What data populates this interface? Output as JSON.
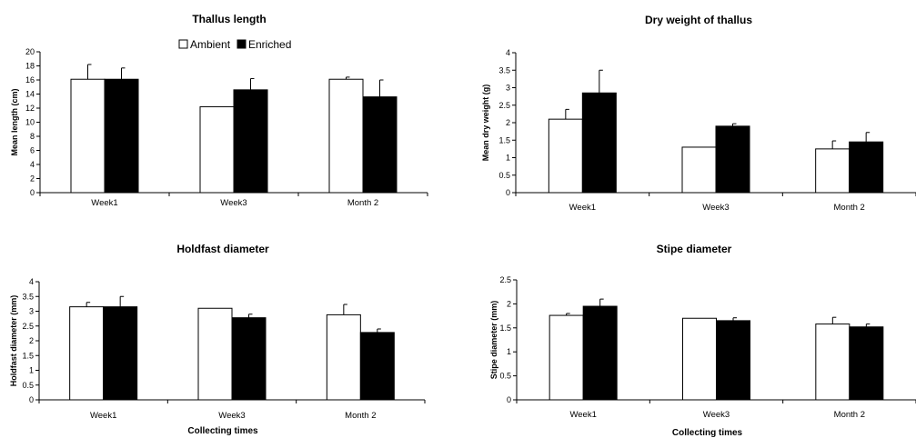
{
  "chart_data": [
    {
      "type": "bar",
      "title": "Thallus length",
      "xlabel": "",
      "ylabel": "Mean length (cm)",
      "categories": [
        "Week1",
        "Week3",
        "Month 2"
      ],
      "yticks": [
        "0",
        "2",
        "4",
        "6",
        "8",
        "10",
        "12",
        "14",
        "16",
        "18",
        "20"
      ],
      "ylim": [
        0,
        20
      ],
      "legend": "top",
      "series": [
        {
          "name": "Ambient",
          "values": [
            16.1,
            12.2,
            16.1
          ],
          "errors": [
            2.1,
            0,
            0.3
          ],
          "color": "#ffffff"
        },
        {
          "name": "Enriched",
          "values": [
            16.1,
            14.6,
            13.6
          ],
          "errors": [
            1.6,
            1.6,
            2.4
          ],
          "color": "#000000"
        }
      ]
    },
    {
      "type": "bar",
      "title": "Dry weight of thallus",
      "xlabel": "",
      "ylabel": "Mean dry weight (g)",
      "categories": [
        "Week1",
        "Week3",
        "Month 2"
      ],
      "yticks": [
        "0",
        "0.5",
        "1",
        "1.5",
        "2",
        "2.5",
        "3",
        "3.5",
        "4"
      ],
      "ylim": [
        0,
        4
      ],
      "series": [
        {
          "name": "Ambient",
          "values": [
            2.1,
            1.3,
            1.25
          ],
          "errors": [
            0.28,
            0,
            0.23
          ],
          "color": "#ffffff"
        },
        {
          "name": "Enriched",
          "values": [
            2.85,
            1.9,
            1.45
          ],
          "errors": [
            0.65,
            0.07,
            0.27
          ],
          "color": "#000000"
        }
      ]
    },
    {
      "type": "bar",
      "title": "Holdfast diameter",
      "xlabel": "Collecting times",
      "ylabel": "Holdfast diameter (mm)",
      "categories": [
        "Week1",
        "Week3",
        "Month 2"
      ],
      "yticks": [
        "0",
        "0.5",
        "1",
        "1.5",
        "2",
        "2.5",
        "3",
        "3.5",
        "4"
      ],
      "ylim": [
        0,
        4
      ],
      "series": [
        {
          "name": "Ambient",
          "values": [
            3.15,
            3.1,
            2.88
          ],
          "errors": [
            0.15,
            0,
            0.35
          ],
          "color": "#ffffff"
        },
        {
          "name": "Enriched",
          "values": [
            3.15,
            2.78,
            2.28
          ],
          "errors": [
            0.35,
            0.12,
            0.12
          ],
          "color": "#000000"
        }
      ]
    },
    {
      "type": "bar",
      "title": "Stipe diameter",
      "xlabel": "Collecting times",
      "ylabel": "Stipe diameter (mm)",
      "categories": [
        "Week1",
        "Week3",
        "Month 2"
      ],
      "yticks": [
        "0",
        "0.5",
        "1",
        "1.5",
        "2",
        "2.5"
      ],
      "ylim": [
        0,
        2.5
      ],
      "series": [
        {
          "name": "Ambient",
          "values": [
            1.76,
            1.7,
            1.58
          ],
          "errors": [
            0.04,
            0,
            0.14
          ],
          "color": "#ffffff"
        },
        {
          "name": "Enriched",
          "values": [
            1.95,
            1.65,
            1.52
          ],
          "errors": [
            0.15,
            0.06,
            0.06
          ],
          "color": "#000000"
        }
      ]
    }
  ]
}
